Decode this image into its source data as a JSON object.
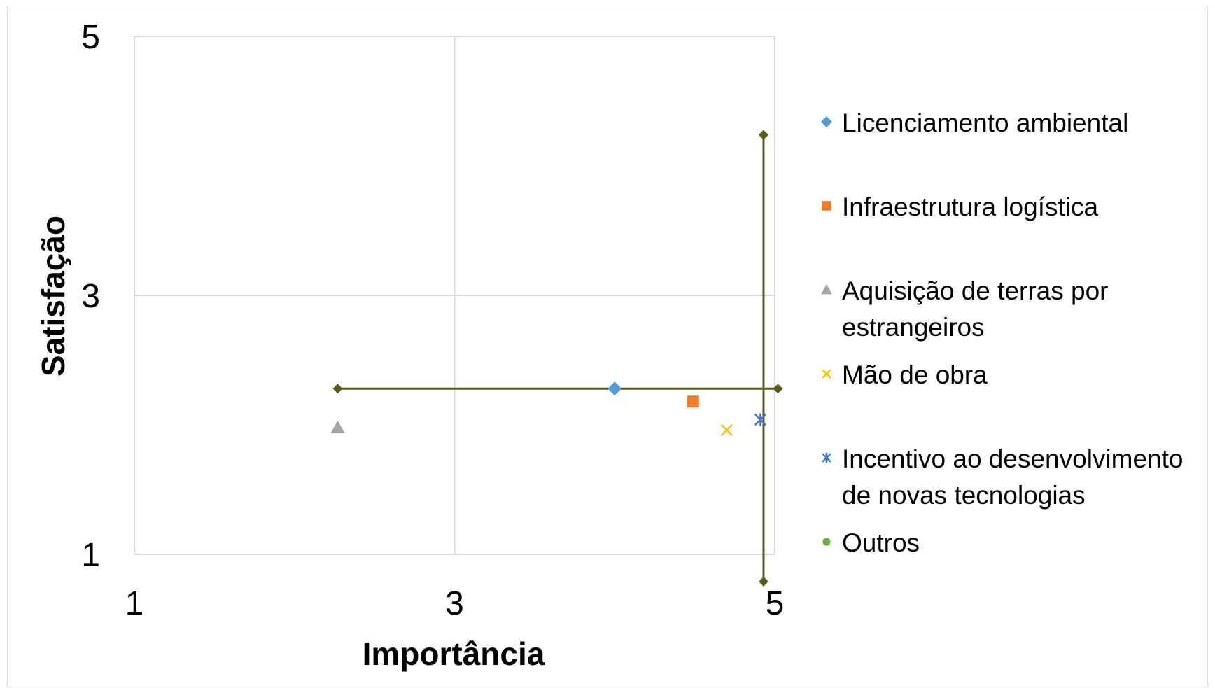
{
  "chart_data": {
    "type": "scatter",
    "xlabel": "Importância",
    "ylabel": "Satisfação",
    "xlim": [
      1,
      5
    ],
    "ylim": [
      1,
      5
    ],
    "x_ticks": [
      "1",
      "3",
      "5"
    ],
    "y_ticks": [
      "1",
      "3",
      "5"
    ],
    "grid": true,
    "legend_position": "right",
    "series": [
      {
        "name": "Licenciamento ambiental",
        "marker": "diamond",
        "color": "#5b9bd5",
        "points": [
          {
            "x": 4.0,
            "y": 2.28
          }
        ]
      },
      {
        "name": "Infraestrutura logística",
        "marker": "square",
        "color": "#ed7d31",
        "points": [
          {
            "x": 4.49,
            "y": 2.18
          }
        ]
      },
      {
        "name": "Aquisição de terras por estrangeiros",
        "marker": "triangle",
        "color": "#a5a5a5",
        "points": [
          {
            "x": 2.27,
            "y": 1.98
          }
        ]
      },
      {
        "name": "Mão de obra",
        "marker": "x",
        "color": "#ffc000",
        "points": [
          {
            "x": 4.7,
            "y": 1.96
          }
        ]
      },
      {
        "name": "Incentivo ao desenvolvimento de novas tecnologias",
        "marker": "star",
        "color": "#4472c4",
        "points": [
          {
            "x": 4.91,
            "y": 2.04
          }
        ]
      },
      {
        "name": "Outros",
        "marker": "circle",
        "color": "#70ad47",
        "points": []
      }
    ],
    "reference_lines": {
      "color": "#5a5a1e",
      "horizontal": {
        "y": 2.28,
        "x_from": 2.27,
        "x_to": 5.02
      },
      "vertical": {
        "x": 4.93,
        "y_from": 0.79,
        "y_to": 4.24
      }
    }
  },
  "legend": {
    "items": [
      {
        "lines": [
          "Licenciamento ambiental"
        ]
      },
      {
        "lines": [
          "Infraestrutura logística"
        ]
      },
      {
        "lines": [
          "Aquisição de terras por",
          "estrangeiros"
        ]
      },
      {
        "lines": [
          "Mão de obra"
        ]
      },
      {
        "lines": [
          "Incentivo ao desenvolvimento",
          "de novas tecnologias"
        ]
      },
      {
        "lines": [
          "Outros"
        ]
      }
    ]
  }
}
